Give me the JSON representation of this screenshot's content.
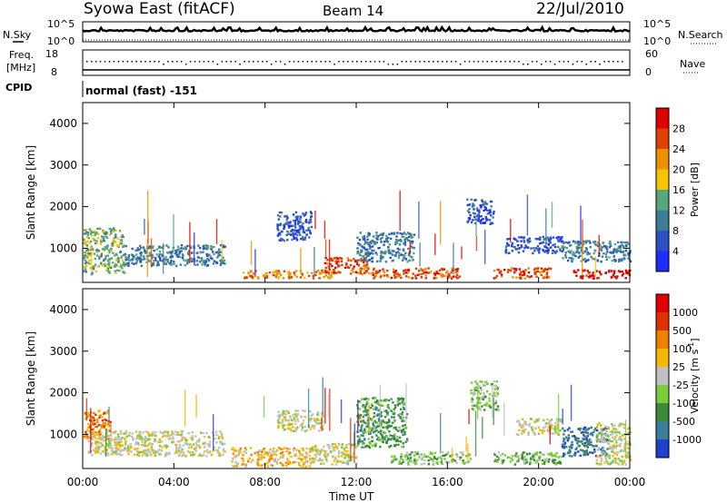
{
  "header": {
    "site": "Syowa East (fitACF)",
    "beam": "Beam 14",
    "date": "22/Jul/2010"
  },
  "top_panels": {
    "nsky_label": "N.Sky",
    "nsearch_label": "N.Search",
    "freq_label_1": "Freq.",
    "freq_label_2": "[MHz]",
    "nave_label": "Nave",
    "cpid_label": "CPID",
    "cpid_value": "normal (fast) -151",
    "noise_ticks_left": [
      "10^5",
      "10^0"
    ],
    "noise_ticks_right": [
      "10^5",
      "10^0"
    ],
    "freq_ticks": [
      "18",
      "8"
    ],
    "nave_ticks": [
      "60",
      "0"
    ]
  },
  "chart_data": [
    {
      "type": "heatmap",
      "panel": "power",
      "ylabel": "Slant Range [km]",
      "xlabel": "Time UT",
      "ylim": [
        180,
        4500
      ],
      "y_ticks": [
        1000,
        2000,
        3000,
        4000
      ],
      "x_tick_labels": [
        "00:00",
        "04:00",
        "08:00",
        "12:00",
        "16:00",
        "20:00",
        "00:00"
      ],
      "colorbar": {
        "label": "Power [dB]",
        "ticks": [
          "4",
          "8",
          "12",
          "16",
          "20",
          "24",
          "28"
        ],
        "colors": [
          "#1f2bff",
          "#2c52c2",
          "#3f7c96",
          "#56a77a",
          "#f5c400",
          "#f09000",
          "#e04000",
          "#e00000"
        ]
      },
      "echo_regions": [
        {
          "t": [
            0.0,
            1.8
          ],
          "r": [
            400,
            1500
          ],
          "level": 3
        },
        {
          "t": [
            1.8,
            6.2
          ],
          "r": [
            600,
            1100
          ],
          "level": 2
        },
        {
          "t": [
            7.0,
            11.0
          ],
          "r": [
            300,
            500
          ],
          "level": 5
        },
        {
          "t": [
            8.5,
            10.0
          ],
          "r": [
            1200,
            1900
          ],
          "level": 1
        },
        {
          "t": [
            10.5,
            12.5
          ],
          "r": [
            400,
            800
          ],
          "level": 6
        },
        {
          "t": [
            12.5,
            16.5
          ],
          "r": [
            300,
            550
          ],
          "level": 6
        },
        {
          "t": [
            12.0,
            14.5
          ],
          "r": [
            700,
            1400
          ],
          "level": 2
        },
        {
          "t": [
            16.8,
            18.0
          ],
          "r": [
            1600,
            2200
          ],
          "level": 1
        },
        {
          "t": [
            18.0,
            20.5
          ],
          "r": [
            300,
            550
          ],
          "level": 6
        },
        {
          "t": [
            18.5,
            21.0
          ],
          "r": [
            900,
            1300
          ],
          "level": 1
        },
        {
          "t": [
            21.5,
            24.0
          ],
          "r": [
            300,
            500
          ],
          "level": 7
        },
        {
          "t": [
            21.0,
            24.0
          ],
          "r": [
            700,
            1200
          ],
          "level": 2
        }
      ]
    },
    {
      "type": "heatmap",
      "panel": "velocity",
      "ylabel": "Slant Range [km]",
      "xlabel": "Time UT",
      "ylim": [
        180,
        4500
      ],
      "y_ticks": [
        1000,
        2000,
        3000,
        4000
      ],
      "x_tick_labels": [
        "00:00",
        "04:00",
        "08:00",
        "12:00",
        "16:00",
        "20:00",
        "00:00"
      ],
      "colorbar": {
        "label": "Velocity [m s",
        "label_sup": "-1",
        "label_end": "]",
        "ticks": [
          "1000",
          "500",
          "100",
          "25",
          "-25",
          "-100",
          "-500",
          "-1000"
        ],
        "colors": [
          "#2040d0",
          "#3d7d9c",
          "#3a8a3a",
          "#7acc3a",
          "#c0c0c0",
          "#f5b800",
          "#f08000",
          "#e03000",
          "#e00000"
        ]
      },
      "echo_regions": [
        {
          "t": [
            0.0,
            1.2
          ],
          "r": [
            900,
            1600
          ],
          "level": 6
        },
        {
          "t": [
            0.2,
            6.2
          ],
          "r": [
            500,
            1100
          ],
          "level": 4
        },
        {
          "t": [
            6.5,
            10.0
          ],
          "r": [
            250,
            700
          ],
          "level": 5
        },
        {
          "t": [
            8.5,
            10.5
          ],
          "r": [
            1100,
            1600
          ],
          "level": 4
        },
        {
          "t": [
            10.0,
            12.0
          ],
          "r": [
            300,
            800
          ],
          "level": 4
        },
        {
          "t": [
            12.0,
            14.2
          ],
          "r": [
            700,
            1900
          ],
          "level": 2
        },
        {
          "t": [
            13.5,
            17.0
          ],
          "r": [
            300,
            600
          ],
          "level": 3
        },
        {
          "t": [
            17.0,
            18.2
          ],
          "r": [
            1600,
            2300
          ],
          "level": 3
        },
        {
          "t": [
            18.0,
            21.0
          ],
          "r": [
            300,
            600
          ],
          "level": 3
        },
        {
          "t": [
            19.0,
            21.0
          ],
          "r": [
            1000,
            1400
          ],
          "level": 4
        },
        {
          "t": [
            21.0,
            23.0
          ],
          "r": [
            500,
            1200
          ],
          "level": 1
        },
        {
          "t": [
            22.5,
            24.0
          ],
          "r": [
            300,
            1300
          ],
          "level": 4
        }
      ]
    }
  ]
}
